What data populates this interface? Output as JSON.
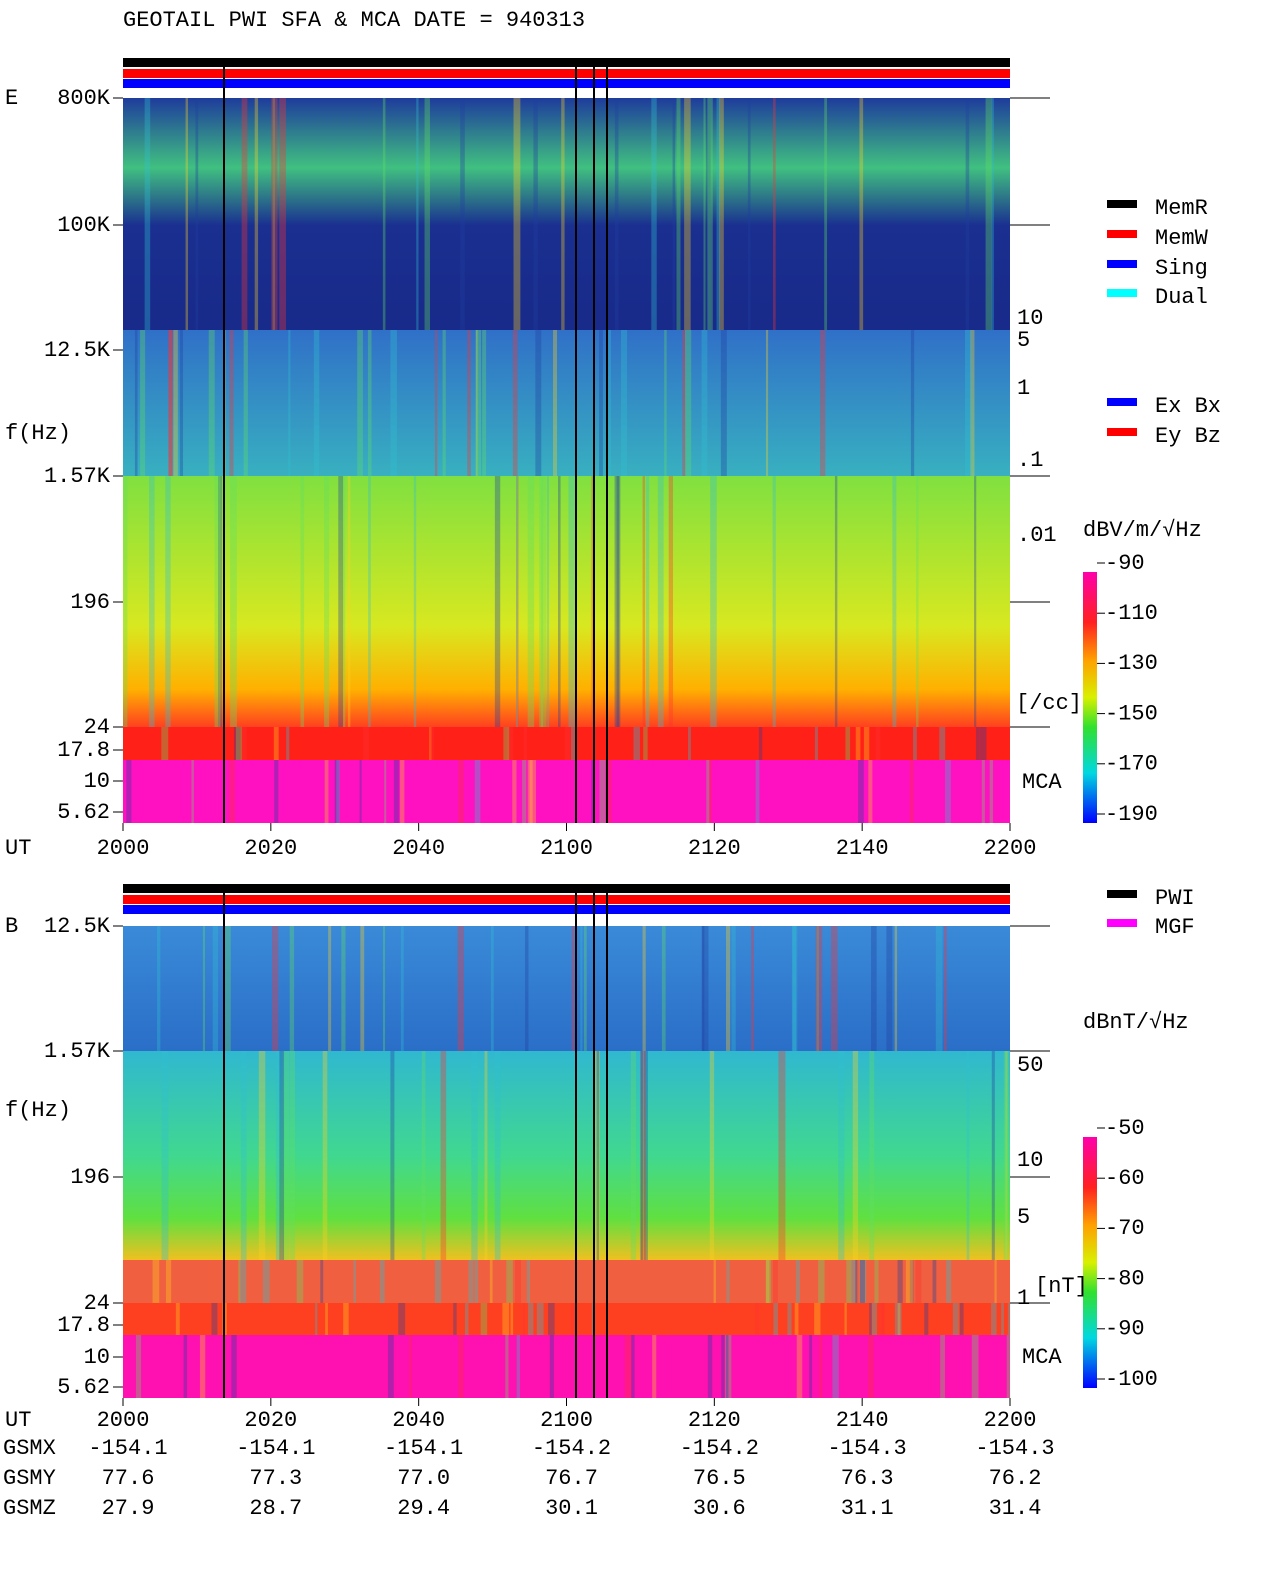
{
  "title": "GEOTAIL  PWI SFA & MCA   DATE = 940313",
  "panels": [
    {
      "label": "E",
      "freq_axis_label": "f(Hz)",
      "freq_ticks": [
        "800K",
        "100K",
        "12.5K",
        "1.57K",
        "196",
        "24",
        "17.8",
        "10",
        "5.62"
      ],
      "time_axis_label": "UT",
      "time_ticks": [
        "2000",
        "2020",
        "2040",
        "2100",
        "2120",
        "2140",
        "2200"
      ],
      "mca_label": "MCA",
      "colorbar_title": "dBV/m/√Hz",
      "colorbar_ticks": [
        "-90",
        "-110",
        "-130",
        "-150",
        "-170",
        "-190"
      ],
      "density_ticks": [
        "10",
        "5",
        "1",
        ".1",
        ".01"
      ],
      "density_unit": "[/cc]",
      "legend": [
        {
          "name": "MemR",
          "color": "#000000"
        },
        {
          "name": "MemW",
          "color": "#ff0000"
        },
        {
          "name": "Sing",
          "color": "#0000ff"
        },
        {
          "name": "Dual",
          "color": "#00ffff"
        }
      ],
      "mode_legend": [
        {
          "name": "Ex Bx",
          "color": "#0000ff"
        },
        {
          "name": "Ey Bz",
          "color": "#ff0000"
        }
      ]
    },
    {
      "label": "B",
      "freq_axis_label": "f(Hz)",
      "freq_ticks": [
        "12.5K",
        "1.57K",
        "196",
        "24",
        "17.8",
        "10",
        "5.62"
      ],
      "time_axis_label": "UT",
      "time_ticks": [
        "2000",
        "2020",
        "2040",
        "2100",
        "2120",
        "2140",
        "2200"
      ],
      "mca_label": "MCA",
      "colorbar_title": "dBnT/√Hz",
      "colorbar_ticks": [
        "-50",
        "-60",
        "-70",
        "-80",
        "-90",
        "-100"
      ],
      "density_ticks": [
        "50",
        "10",
        "5",
        "1"
      ],
      "density_unit": "[nT]",
      "legend": [
        {
          "name": "PWI",
          "color": "#000000"
        },
        {
          "name": "MGF",
          "color": "#ff00ff"
        }
      ],
      "mode_legend": []
    }
  ],
  "orbit": {
    "rows": [
      {
        "label": "GSMX",
        "values": [
          "-154.1",
          "-154.1",
          "-154.1",
          "-154.2",
          "-154.2",
          "-154.3",
          "-154.3"
        ]
      },
      {
        "label": "GSMY",
        "values": [
          "77.6",
          "77.3",
          "77.0",
          "76.7",
          "76.5",
          "76.3",
          "76.2"
        ]
      },
      {
        "label": "GSMZ",
        "values": [
          "27.9",
          "28.7",
          "29.4",
          "30.1",
          "30.6",
          "31.1",
          "31.4"
        ]
      }
    ]
  }
}
